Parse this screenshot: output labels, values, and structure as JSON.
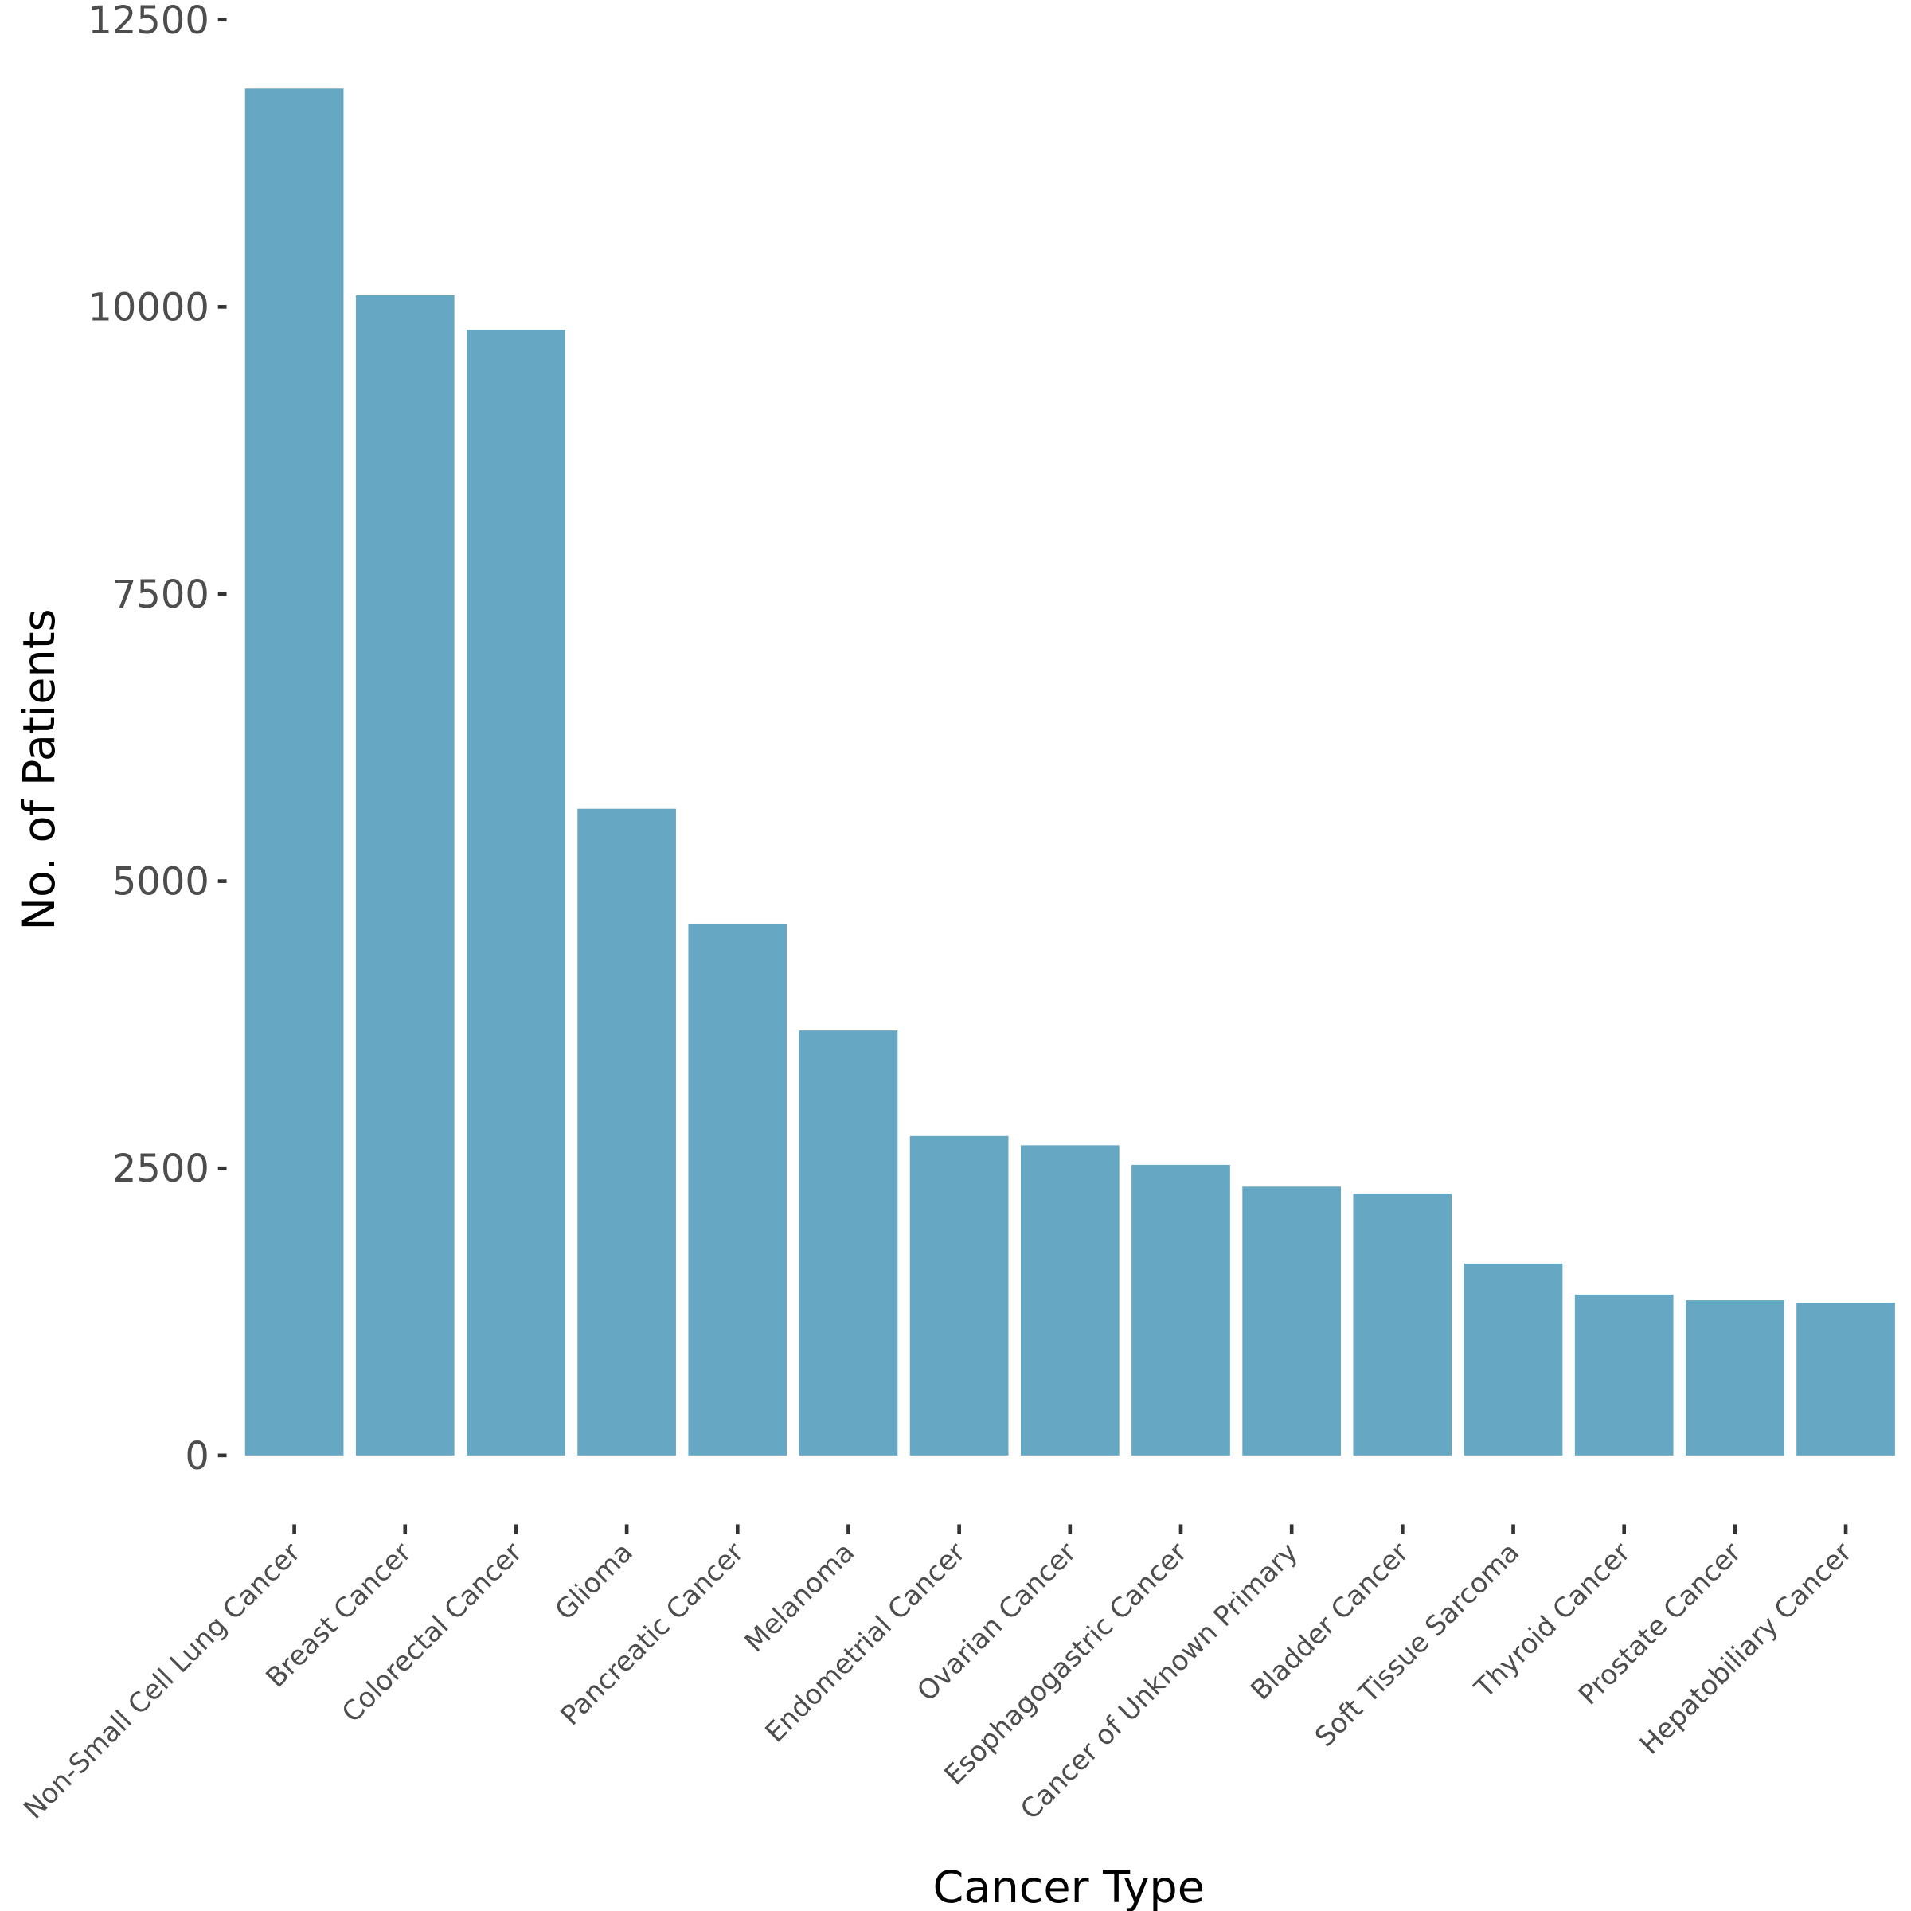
{
  "chart_data": {
    "type": "bar",
    "title": "",
    "xlabel": "Cancer Type",
    "ylabel": "No. of Patients",
    "ylim": [
      0,
      12500
    ],
    "yticks": [
      0,
      2500,
      5000,
      7500,
      10000,
      12500
    ],
    "grid": false,
    "bar_color": "#66a7c3",
    "categories": [
      "Non-Small Cell Lung Cancer",
      "Breast Cancer",
      "Colorectal Cancer",
      "Glioma",
      "Pancreatic Cancer",
      "Melanoma",
      "Endometrial Cancer",
      "Ovarian Cancer",
      "Esophagogastric Cancer",
      "Cancer of Unknown Primary",
      "Bladder Cancer",
      "Soft Tissue Sarcoma",
      "Thyroid Cancer",
      "Prostate Cancer",
      "Hepatobiliary Cancer"
    ],
    "values": [
      11900,
      10100,
      9800,
      5630,
      4630,
      3700,
      2780,
      2700,
      2530,
      2340,
      2280,
      1670,
      1400,
      1350,
      1330
    ]
  }
}
